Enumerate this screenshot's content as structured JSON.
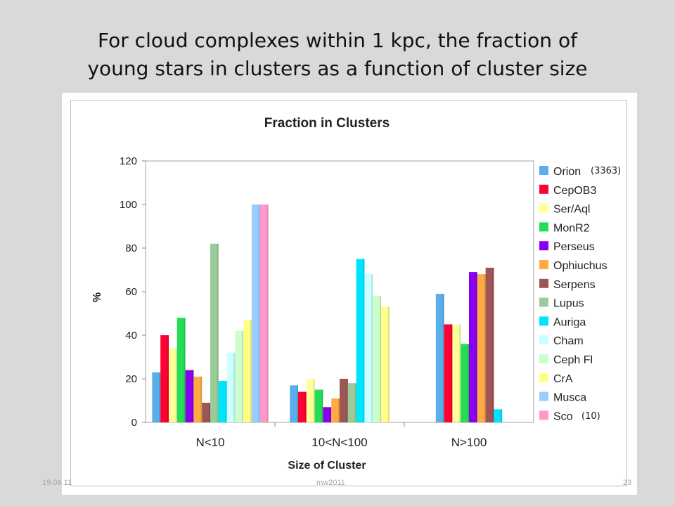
{
  "slide": {
    "title_line1": "For cloud complexes within 1 kpc, the fraction of",
    "title_line2": "young stars in clusters as a function of cluster size"
  },
  "annotations": {
    "orion_count": "(3363)",
    "sco_count": "(10)"
  },
  "footer": {
    "date": "19.09.11",
    "center": "mw2011",
    "page": "23"
  },
  "chart_data": {
    "type": "bar",
    "title": "Fraction in Clusters",
    "xlabel": "Size of Cluster",
    "ylabel": "%",
    "ylim": [
      0,
      120
    ],
    "yticks": [
      0,
      20,
      40,
      60,
      80,
      100,
      120
    ],
    "grid": false,
    "legend": "right",
    "categories": [
      "N<10",
      "10<N<100",
      "N>100"
    ],
    "series": [
      {
        "name": "Orion",
        "color": "#5aaeea",
        "values": [
          23,
          17,
          59
        ]
      },
      {
        "name": "CepOB3",
        "color": "#ff0033",
        "values": [
          40,
          14,
          45
        ]
      },
      {
        "name": "Ser/Aql",
        "color": "#ffff99",
        "values": [
          34,
          20,
          45
        ]
      },
      {
        "name": "MonR2",
        "color": "#22dd55",
        "values": [
          48,
          15,
          36
        ]
      },
      {
        "name": "Perseus",
        "color": "#8a00ee",
        "values": [
          24,
          7,
          69
        ]
      },
      {
        "name": "Ophiuchus",
        "color": "#ffaa44",
        "values": [
          21,
          11,
          68
        ]
      },
      {
        "name": "Serpens",
        "color": "#9e5555",
        "values": [
          9,
          20,
          71
        ]
      },
      {
        "name": "Lupus",
        "color": "#99cc99",
        "values": [
          82,
          18,
          0
        ]
      },
      {
        "name": "Auriga",
        "color": "#00e5ff",
        "values": [
          19,
          75,
          6
        ]
      },
      {
        "name": "Cham",
        "color": "#ccffff",
        "values": [
          32,
          68,
          0
        ]
      },
      {
        "name": "Ceph Fl",
        "color": "#ccffcc",
        "values": [
          42,
          58,
          0
        ]
      },
      {
        "name": "CrA",
        "color": "#ffff88",
        "values": [
          47,
          53,
          0
        ]
      },
      {
        "name": "Musca",
        "color": "#99ccff",
        "values": [
          100,
          0,
          0
        ]
      },
      {
        "name": "Sco",
        "color": "#ff99cc",
        "values": [
          100,
          0,
          0
        ]
      }
    ]
  }
}
